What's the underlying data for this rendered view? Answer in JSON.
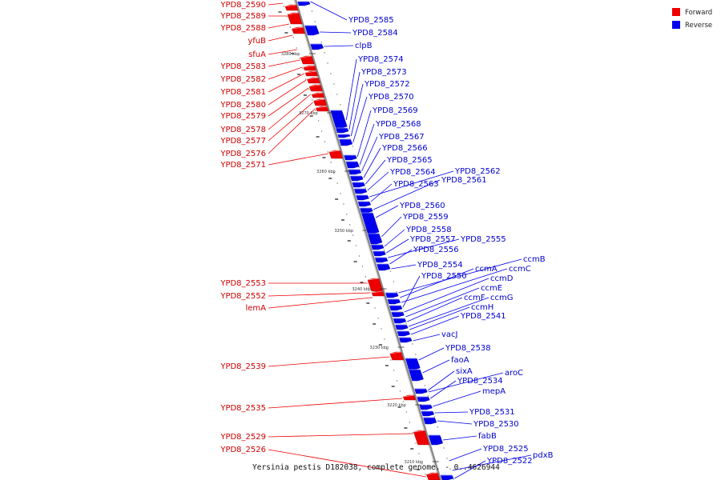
{
  "caption": "Yersinia pestis D182038, complete genome. - 0..4626944",
  "legend": [
    {
      "label": "Forward",
      "color": "#ee0000"
    },
    {
      "label": "Reverse",
      "color": "#0000ee"
    }
  ],
  "colors": {
    "forward": "#ee0000",
    "reverse": "#0000ee",
    "axis": "#777777"
  },
  "ticks": [
    "3280 kbp",
    "3270 kbp",
    "3260 kbp",
    "3250 kbp",
    "3240 kbp",
    "3230 kbp",
    "3220 kbp",
    "3210 kbp"
  ],
  "forward_labels": [
    "YPD8_2590",
    "YPD8_2589",
    "YPD8_2588",
    "yfuB",
    "sfuA",
    "YPD8_2583",
    "YPD8_2582",
    "YPD8_2581",
    "YPD8_2580",
    "YPD8_2579",
    "YPD8_2578",
    "YPD8_2577",
    "YPD8_2576",
    "YPD8_2571",
    "YPD8_2553",
    "YPD8_2552",
    "lemA",
    "YPD8_2539",
    "YPD8_2535",
    "YPD8_2529",
    "YPD8_2526"
  ],
  "reverse_labels": [
    "YPD8_2585",
    "YPD8_2584",
    "clpB",
    "YPD8_2574",
    "YPD8_2573",
    "YPD8_2572",
    "YPD8_2570",
    "YPD8_2569",
    "YPD8_2568",
    "YPD8_2567",
    "YPD8_2566",
    "YPD8_2565",
    "YPD8_2564",
    "YPD8_2562",
    "YPD8_2563",
    "YPD8_2561",
    "YPD8_2560",
    "YPD8_2559",
    "YPD8_2558",
    "YPD8_2557",
    "YPD8_2555",
    "YPD8_2556",
    "YPD8_2554",
    "ccmB",
    "ccmA",
    "ccmC",
    "YPD8_2550",
    "ccmD",
    "ccmE",
    "ccmF",
    "ccmG",
    "ccmH",
    "YPD8_2541",
    "vacJ",
    "YPD8_2538",
    "faoA",
    "sixA",
    "aroC",
    "YPD8_2534",
    "mepA",
    "YPD8_2531",
    "YPD8_2530",
    "fabB",
    "YPD8_2525",
    "pdxB",
    "YPD8_2522"
  ]
}
